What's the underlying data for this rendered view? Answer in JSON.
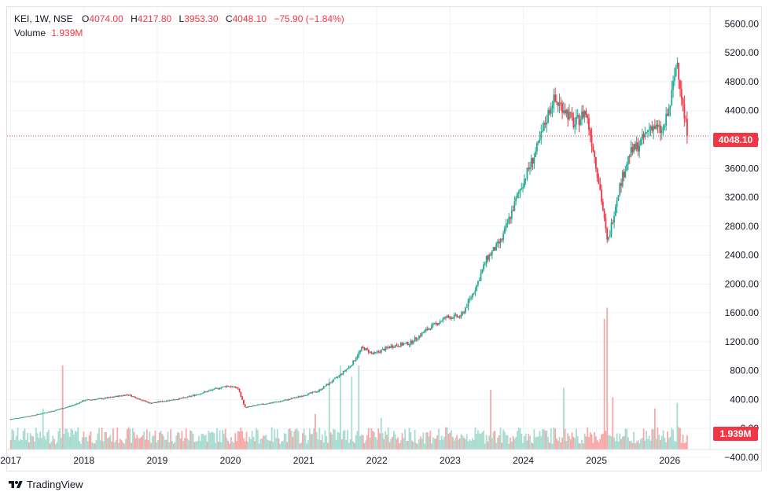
{
  "legend": {
    "symbol": "KEI, 1W, NSE",
    "open_label": "O",
    "open": "4074.00",
    "high_label": "H",
    "high": "4217.80",
    "low_label": "L",
    "low": "3953.30",
    "close_label": "C",
    "close": "4048.10",
    "change": "−75.90 (−1.84%)",
    "volume_label": "Volume",
    "volume": "1.939M"
  },
  "last_price_badge": "4048.10",
  "volume_badge": "1.939M",
  "brand": "TradingView",
  "colors": {
    "up": "#22ab94",
    "down": "#f23645",
    "grid": "#f0f3fa",
    "up_vol": "#a8dcd1",
    "down_vol": "#f7a9a7"
  },
  "chart_data": {
    "type": "candlestick",
    "title": "KEI, 1W, NSE",
    "y_axis": {
      "ticks": [
        "5600.00",
        "5200.00",
        "4800.00",
        "4400.00",
        "4000.00",
        "3600.00",
        "3200.00",
        "2800.00",
        "2400.00",
        "2000.00",
        "1600.00",
        "1200.00",
        "800.00",
        "400.00",
        "0.00",
        "−400.00"
      ],
      "range": [
        -400,
        5800
      ]
    },
    "x_axis": {
      "labels": [
        "2017",
        "2018",
        "2019",
        "2020",
        "2021",
        "2022",
        "2023",
        "2024",
        "2025",
        "2026"
      ],
      "range": [
        2016.95,
        2026.55
      ]
    },
    "last_close": 4048.1,
    "price_path": [
      [
        2017.0,
        130
      ],
      [
        2017.3,
        180
      ],
      [
        2017.6,
        250
      ],
      [
        2017.85,
        320
      ],
      [
        2018.0,
        390
      ],
      [
        2018.3,
        420
      ],
      [
        2018.6,
        470
      ],
      [
        2018.9,
        350
      ],
      [
        2019.1,
        380
      ],
      [
        2019.4,
        430
      ],
      [
        2019.7,
        520
      ],
      [
        2019.95,
        590
      ],
      [
        2020.1,
        560
      ],
      [
        2020.2,
        290
      ],
      [
        2020.4,
        330
      ],
      [
        2020.7,
        380
      ],
      [
        2020.9,
        430
      ],
      [
        2021.2,
        520
      ],
      [
        2021.45,
        700
      ],
      [
        2021.65,
        880
      ],
      [
        2021.8,
        1120
      ],
      [
        2021.95,
        1030
      ],
      [
        2022.2,
        1140
      ],
      [
        2022.45,
        1180
      ],
      [
        2022.7,
        1380
      ],
      [
        2022.95,
        1540
      ],
      [
        2023.15,
        1550
      ],
      [
        2023.35,
        1950
      ],
      [
        2023.5,
        2350
      ],
      [
        2023.7,
        2600
      ],
      [
        2023.95,
        3300
      ],
      [
        2024.2,
        3900
      ],
      [
        2024.4,
        4550
      ],
      [
        2024.55,
        4450
      ],
      [
        2024.7,
        4200
      ],
      [
        2024.85,
        4400
      ],
      [
        2024.95,
        3900
      ],
      [
        2025.05,
        3300
      ],
      [
        2025.15,
        2550
      ],
      [
        2025.3,
        3300
      ],
      [
        2025.45,
        3800
      ],
      [
        2025.6,
        3950
      ],
      [
        2025.75,
        4200
      ],
      [
        2025.9,
        4100
      ],
      [
        2026.0,
        4450
      ],
      [
        2026.1,
        5100
      ],
      [
        2026.2,
        4300
      ],
      [
        2026.25,
        4048
      ]
    ],
    "volume": {
      "units": "M",
      "baseline": 0.3,
      "spikes": [
        [
          2017.45,
          2.2
        ],
        [
          2017.7,
          4.5
        ],
        [
          2021.15,
          1.9
        ],
        [
          2021.35,
          3.8
        ],
        [
          2021.5,
          4.5
        ],
        [
          2021.65,
          3.9
        ],
        [
          2021.75,
          4.5
        ],
        [
          2022.05,
          1.7
        ],
        [
          2023.55,
          3.2
        ],
        [
          2024.55,
          3.3
        ],
        [
          2025.1,
          7.0
        ],
        [
          2025.15,
          7.6
        ],
        [
          2025.22,
          2.8
        ],
        [
          2025.8,
          2.2
        ],
        [
          2026.1,
          2.5
        ]
      ]
    }
  }
}
